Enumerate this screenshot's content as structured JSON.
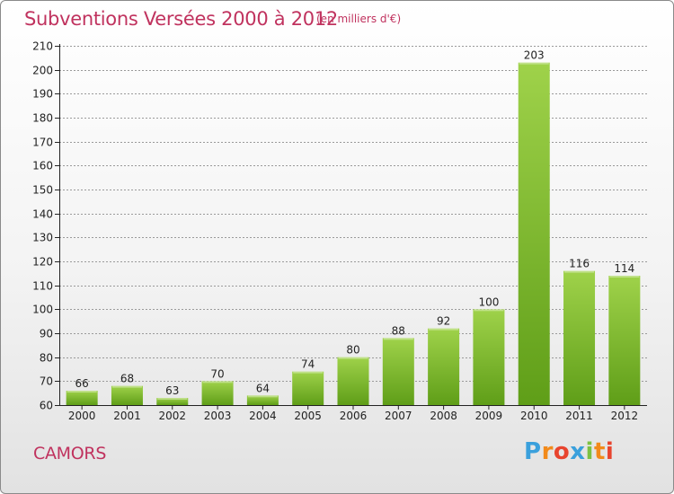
{
  "header": {
    "title": "Subventions Versées 2000 à 2012",
    "subtitle": "(en milliers d'€)"
  },
  "commune": "CAMORS",
  "logo": {
    "letters": [
      "P",
      "r",
      "o",
      "x",
      "i",
      "t",
      "i"
    ],
    "colors": [
      "#3aa0dc",
      "#f28a1a",
      "#e8442e",
      "#3aa0dc",
      "#7cc142",
      "#f28a1a",
      "#e8442e"
    ]
  },
  "colors": {
    "bar_light": "#9fd24a",
    "bar_dark": "#5f9e18",
    "axis": "#222222",
    "grid": "#9a9a9a",
    "accent": "#c0325e"
  },
  "chart_data": {
    "type": "bar",
    "categories": [
      "2000",
      "2001",
      "2002",
      "2003",
      "2004",
      "2005",
      "2006",
      "2007",
      "2008",
      "2009",
      "2010",
      "2011",
      "2012"
    ],
    "values": [
      66,
      68,
      63,
      70,
      64,
      74,
      80,
      88,
      92,
      100,
      203,
      116,
      114
    ],
    "title": "Subventions Versées 2000 à 2012",
    "subtitle": "(en milliers d'€)",
    "xlabel": "",
    "ylabel": "",
    "ylim": [
      60,
      210
    ],
    "yticks": [
      60,
      70,
      80,
      90,
      100,
      110,
      120,
      130,
      140,
      150,
      160,
      170,
      180,
      190,
      200,
      210
    ],
    "grid": true,
    "data_labels": true
  }
}
